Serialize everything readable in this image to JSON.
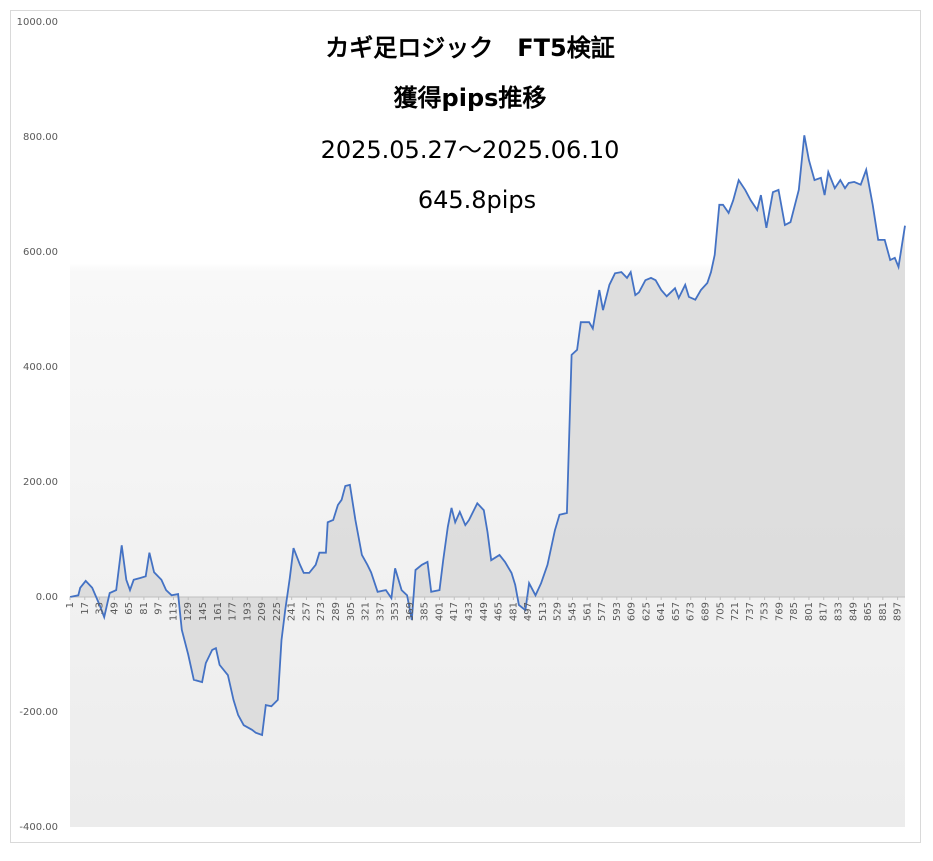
{
  "chart_data": {
    "type": "area",
    "title": "カギ足ロジック　FT5検証",
    "subtitle": "獲得pips推移",
    "period": "2025.05.27～2025.06.10",
    "total": "645.8pips",
    "color": "#4472c4",
    "xlim": [
      1,
      905
    ],
    "xticks": [
      1,
      17,
      33,
      49,
      65,
      81,
      97,
      113,
      129,
      145,
      161,
      177,
      193,
      209,
      225,
      241,
      257,
      273,
      289,
      305,
      321,
      337,
      353,
      369,
      385,
      401,
      417,
      433,
      449,
      465,
      481,
      497,
      513,
      529,
      545,
      561,
      577,
      593,
      609,
      625,
      641,
      657,
      673,
      689,
      705,
      721,
      737,
      753,
      769,
      785,
      801,
      817,
      833,
      849,
      865,
      881,
      897
    ],
    "ylim": [
      -400,
      1000
    ],
    "yticks": [
      {
        "value": -400,
        "label": "-400.00"
      },
      {
        "value": -200,
        "label": "-200.00"
      },
      {
        "value": 0,
        "label": "0.00"
      },
      {
        "value": 200,
        "label": "200.00"
      },
      {
        "value": 400,
        "label": "400.00"
      },
      {
        "value": 600,
        "label": "600.00"
      },
      {
        "value": 800,
        "label": "800.00"
      },
      {
        "value": 1000,
        "label": "1000.00"
      }
    ],
    "x": [
      1,
      10,
      12,
      18,
      25,
      33,
      38,
      44,
      51,
      57,
      62,
      66,
      70,
      77,
      83,
      87,
      92,
      100,
      105,
      111,
      118,
      122,
      129,
      135,
      144,
      148,
      155,
      159,
      163,
      172,
      178,
      183,
      189,
      198,
      202,
      209,
      213,
      219,
      226,
      230,
      234,
      239,
      243,
      250,
      254,
      260,
      267,
      271,
      278,
      280,
      286,
      291,
      295,
      299,
      304,
      310,
      317,
      323,
      327,
      334,
      343,
      349,
      353,
      360,
      366,
      371,
      375,
      382,
      388,
      392,
      401,
      405,
      410,
      414,
      418,
      423,
      429,
      433,
      442,
      449,
      453,
      457,
      466,
      472,
      479,
      483,
      487,
      494,
      498,
      505,
      511,
      518,
      526,
      531,
      539,
      544,
      550,
      554,
      563,
      567,
      574,
      578,
      585,
      591,
      598,
      604,
      608,
      613,
      617,
      624,
      630,
      635,
      641,
      647,
      656,
      660,
      667,
      671,
      678,
      684,
      691,
      695,
      699,
      704,
      708,
      714,
      719,
      725,
      732,
      738,
      745,
      749,
      755,
      762,
      768,
      775,
      781,
      790,
      796,
      801,
      807,
      814,
      818,
      822,
      829,
      835,
      840,
      844,
      850,
      857,
      863,
      870,
      876,
      883,
      889,
      894,
      898,
      905
    ],
    "values": [
      0,
      3,
      16,
      28,
      16,
      -14,
      -35,
      7,
      12,
      90,
      30,
      12,
      30,
      33,
      36,
      77,
      43,
      30,
      12,
      3,
      5,
      -57,
      -100,
      -144,
      -148,
      -115,
      -92,
      -89,
      -118,
      -136,
      -179,
      -205,
      -223,
      -231,
      -236,
      -240,
      -188,
      -190,
      -179,
      -75,
      -23,
      33,
      85,
      56,
      42,
      42,
      56,
      77,
      77,
      130,
      134,
      160,
      169,
      193,
      195,
      134,
      73,
      56,
      43,
      9,
      12,
      -2,
      50,
      12,
      3,
      -40,
      47,
      56,
      61,
      9,
      12,
      64,
      122,
      155,
      130,
      148,
      125,
      134,
      163,
      151,
      113,
      64,
      73,
      61,
      42,
      21,
      -14,
      -23,
      24,
      3,
      24,
      56,
      116,
      143,
      146,
      421,
      430,
      478,
      478,
      467,
      534,
      499,
      543,
      563,
      565,
      555,
      565,
      525,
      530,
      551,
      555,
      551,
      534,
      523,
      537,
      520,
      543,
      522,
      517,
      534,
      546,
      565,
      595,
      682,
      682,
      668,
      690,
      725,
      708,
      690,
      673,
      699,
      642,
      704,
      708,
      647,
      652,
      708,
      803,
      760,
      725,
      729,
      699,
      739,
      711,
      725,
      711,
      720,
      722,
      717,
      743,
      682,
      621,
      621,
      586,
      590,
      574,
      645.8
    ]
  }
}
